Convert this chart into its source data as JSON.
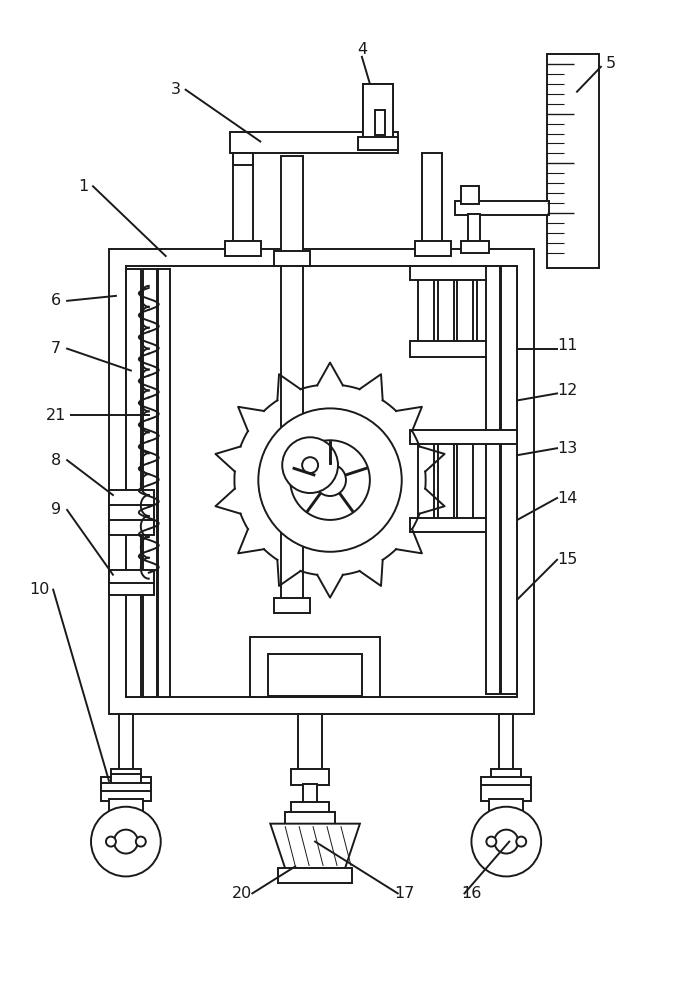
{
  "bg_color": "#ffffff",
  "line_color": "#1a1a1a",
  "line_width": 1.4
}
